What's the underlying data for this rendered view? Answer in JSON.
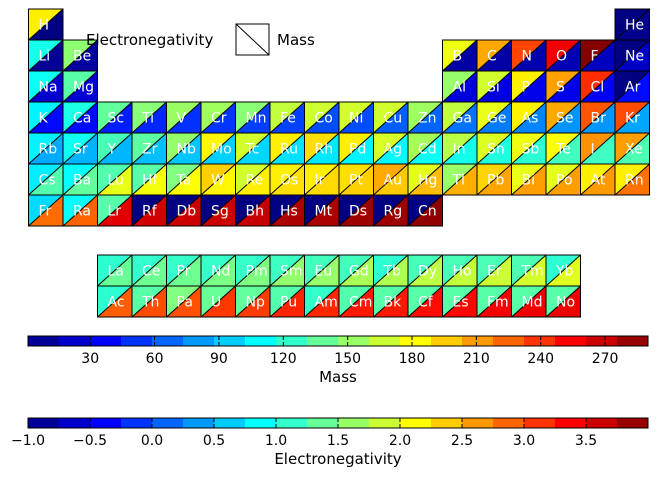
{
  "chart_data": {
    "type": "heatmap",
    "description_encoding": "Each cell is split diagonally: upper-left triangle colored by Electronegativity, lower-right triangle colored by Mass (jet colormap).",
    "legend": {
      "upper_left_label": "Electronegativity",
      "lower_right_label": "Mass"
    },
    "colorbars": [
      {
        "label": "Mass",
        "range": [
          1,
          290
        ],
        "ticks": [
          "30",
          "60",
          "90",
          "120",
          "150",
          "180",
          "210",
          "240",
          "270"
        ],
        "tick_values": [
          30,
          60,
          90,
          120,
          150,
          180,
          210,
          240,
          270
        ]
      },
      {
        "label": "Electronegativity",
        "range": [
          -1.0,
          4.0
        ],
        "ticks": [
          "−1.0",
          "−0.5",
          "0.0",
          "0.5",
          "1.0",
          "1.5",
          "2.0",
          "2.5",
          "3.0",
          "3.5"
        ],
        "tick_values": [
          -1.0,
          -0.5,
          0.0,
          0.5,
          1.0,
          1.5,
          2.0,
          2.5,
          3.0,
          3.5
        ]
      }
    ],
    "elements": [
      {
        "symbol": "H",
        "period": 1,
        "group": 1,
        "electronegativity": 2.2,
        "mass": 1.008
      },
      {
        "symbol": "He",
        "period": 1,
        "group": 18,
        "electronegativity": -1.0,
        "mass": 4.003
      },
      {
        "symbol": "Li",
        "period": 2,
        "group": 1,
        "electronegativity": 0.98,
        "mass": 6.94
      },
      {
        "symbol": "Be",
        "period": 2,
        "group": 2,
        "electronegativity": 1.57,
        "mass": 9.012
      },
      {
        "symbol": "B",
        "period": 2,
        "group": 13,
        "electronegativity": 2.04,
        "mass": 10.81
      },
      {
        "symbol": "C",
        "period": 2,
        "group": 14,
        "electronegativity": 2.55,
        "mass": 12.01
      },
      {
        "symbol": "N",
        "period": 2,
        "group": 15,
        "electronegativity": 3.04,
        "mass": 14.01
      },
      {
        "symbol": "O",
        "period": 2,
        "group": 16,
        "electronegativity": 3.44,
        "mass": 16.0
      },
      {
        "symbol": "F",
        "period": 2,
        "group": 17,
        "electronegativity": 3.98,
        "mass": 19.0
      },
      {
        "symbol": "Ne",
        "period": 2,
        "group": 18,
        "electronegativity": -1.0,
        "mass": 20.18
      },
      {
        "symbol": "Na",
        "period": 3,
        "group": 1,
        "electronegativity": 0.93,
        "mass": 22.99
      },
      {
        "symbol": "Mg",
        "period": 3,
        "group": 2,
        "electronegativity": 1.31,
        "mass": 24.31
      },
      {
        "symbol": "Al",
        "period": 3,
        "group": 13,
        "electronegativity": 1.61,
        "mass": 26.98
      },
      {
        "symbol": "Si",
        "period": 3,
        "group": 14,
        "electronegativity": 1.9,
        "mass": 28.09
      },
      {
        "symbol": "P",
        "period": 3,
        "group": 15,
        "electronegativity": 2.19,
        "mass": 30.97
      },
      {
        "symbol": "S",
        "period": 3,
        "group": 16,
        "electronegativity": 2.58,
        "mass": 32.06
      },
      {
        "symbol": "Cl",
        "period": 3,
        "group": 17,
        "electronegativity": 3.16,
        "mass": 35.45
      },
      {
        "symbol": "Ar",
        "period": 3,
        "group": 18,
        "electronegativity": -1.0,
        "mass": 39.95
      },
      {
        "symbol": "K",
        "period": 4,
        "group": 1,
        "electronegativity": 0.82,
        "mass": 39.1
      },
      {
        "symbol": "Ca",
        "period": 4,
        "group": 2,
        "electronegativity": 1.0,
        "mass": 40.08
      },
      {
        "symbol": "Sc",
        "period": 4,
        "group": 3,
        "electronegativity": 1.36,
        "mass": 44.96
      },
      {
        "symbol": "Ti",
        "period": 4,
        "group": 4,
        "electronegativity": 1.54,
        "mass": 47.87
      },
      {
        "symbol": "V",
        "period": 4,
        "group": 5,
        "electronegativity": 1.63,
        "mass": 50.94
      },
      {
        "symbol": "Cr",
        "period": 4,
        "group": 6,
        "electronegativity": 1.66,
        "mass": 52.0
      },
      {
        "symbol": "Mn",
        "period": 4,
        "group": 7,
        "electronegativity": 1.55,
        "mass": 54.94
      },
      {
        "symbol": "Fe",
        "period": 4,
        "group": 8,
        "electronegativity": 1.83,
        "mass": 55.85
      },
      {
        "symbol": "Co",
        "period": 4,
        "group": 9,
        "electronegativity": 1.88,
        "mass": 58.93
      },
      {
        "symbol": "Ni",
        "period": 4,
        "group": 10,
        "electronegativity": 1.91,
        "mass": 58.69
      },
      {
        "symbol": "Cu",
        "period": 4,
        "group": 11,
        "electronegativity": 1.9,
        "mass": 63.55
      },
      {
        "symbol": "Zn",
        "period": 4,
        "group": 12,
        "electronegativity": 1.65,
        "mass": 65.38
      },
      {
        "symbol": "Ga",
        "period": 4,
        "group": 13,
        "electronegativity": 1.81,
        "mass": 69.72
      },
      {
        "symbol": "Ge",
        "period": 4,
        "group": 14,
        "electronegativity": 2.01,
        "mass": 72.63
      },
      {
        "symbol": "As",
        "period": 4,
        "group": 15,
        "electronegativity": 2.18,
        "mass": 74.92
      },
      {
        "symbol": "Se",
        "period": 4,
        "group": 16,
        "electronegativity": 2.55,
        "mass": 78.97
      },
      {
        "symbol": "Br",
        "period": 4,
        "group": 17,
        "electronegativity": 2.96,
        "mass": 79.9
      },
      {
        "symbol": "Kr",
        "period": 4,
        "group": 18,
        "electronegativity": 3.0,
        "mass": 83.8
      },
      {
        "symbol": "Rb",
        "period": 5,
        "group": 1,
        "electronegativity": 0.82,
        "mass": 85.47
      },
      {
        "symbol": "Sr",
        "period": 5,
        "group": 2,
        "electronegativity": 0.95,
        "mass": 87.62
      },
      {
        "symbol": "Y",
        "period": 5,
        "group": 3,
        "electronegativity": 1.22,
        "mass": 88.91
      },
      {
        "symbol": "Zr",
        "period": 5,
        "group": 4,
        "electronegativity": 1.33,
        "mass": 91.22
      },
      {
        "symbol": "Nb",
        "period": 5,
        "group": 5,
        "electronegativity": 1.6,
        "mass": 92.91
      },
      {
        "symbol": "Mo",
        "period": 5,
        "group": 6,
        "electronegativity": 2.16,
        "mass": 95.95
      },
      {
        "symbol": "Tc",
        "period": 5,
        "group": 7,
        "electronegativity": 1.9,
        "mass": 98.0
      },
      {
        "symbol": "Ru",
        "period": 5,
        "group": 8,
        "electronegativity": 2.2,
        "mass": 101.07
      },
      {
        "symbol": "Rh",
        "period": 5,
        "group": 9,
        "electronegativity": 2.28,
        "mass": 102.91
      },
      {
        "symbol": "Pd",
        "period": 5,
        "group": 10,
        "electronegativity": 2.2,
        "mass": 106.42
      },
      {
        "symbol": "Ag",
        "period": 5,
        "group": 11,
        "electronegativity": 1.93,
        "mass": 107.87
      },
      {
        "symbol": "Cd",
        "period": 5,
        "group": 12,
        "electronegativity": 1.69,
        "mass": 112.41
      },
      {
        "symbol": "In",
        "period": 5,
        "group": 13,
        "electronegativity": 1.78,
        "mass": 114.82
      },
      {
        "symbol": "Sn",
        "period": 5,
        "group": 14,
        "electronegativity": 1.96,
        "mass": 118.71
      },
      {
        "symbol": "Sb",
        "period": 5,
        "group": 15,
        "electronegativity": 2.05,
        "mass": 121.76
      },
      {
        "symbol": "Te",
        "period": 5,
        "group": 16,
        "electronegativity": 2.1,
        "mass": 127.6
      },
      {
        "symbol": "I",
        "period": 5,
        "group": 17,
        "electronegativity": 2.66,
        "mass": 126.9
      },
      {
        "symbol": "Xe",
        "period": 5,
        "group": 18,
        "electronegativity": 2.6,
        "mass": 131.29
      },
      {
        "symbol": "Cs",
        "period": 6,
        "group": 1,
        "electronegativity": 0.79,
        "mass": 132.91
      },
      {
        "symbol": "Ba",
        "period": 6,
        "group": 2,
        "electronegativity": 0.89,
        "mass": 137.33
      },
      {
        "symbol": "Lu",
        "period": 6,
        "group": 3,
        "electronegativity": 1.27,
        "mass": 174.97
      },
      {
        "symbol": "Hf",
        "period": 6,
        "group": 4,
        "electronegativity": 1.3,
        "mass": 178.49
      },
      {
        "symbol": "Ta",
        "period": 6,
        "group": 5,
        "electronegativity": 1.5,
        "mass": 180.95
      },
      {
        "symbol": "W",
        "period": 6,
        "group": 6,
        "electronegativity": 2.36,
        "mass": 183.84
      },
      {
        "symbol": "Re",
        "period": 6,
        "group": 7,
        "electronegativity": 1.9,
        "mass": 186.21
      },
      {
        "symbol": "Os",
        "period": 6,
        "group": 8,
        "electronegativity": 2.2,
        "mass": 190.23
      },
      {
        "symbol": "Ir",
        "period": 6,
        "group": 9,
        "electronegativity": 2.2,
        "mass": 192.22
      },
      {
        "symbol": "Pt",
        "period": 6,
        "group": 10,
        "electronegativity": 2.28,
        "mass": 195.08
      },
      {
        "symbol": "Au",
        "period": 6,
        "group": 11,
        "electronegativity": 2.54,
        "mass": 196.97
      },
      {
        "symbol": "Hg",
        "period": 6,
        "group": 12,
        "electronegativity": 2.0,
        "mass": 200.59
      },
      {
        "symbol": "Tl",
        "period": 6,
        "group": 13,
        "electronegativity": 1.62,
        "mass": 204.38
      },
      {
        "symbol": "Pb",
        "period": 6,
        "group": 14,
        "electronegativity": 2.33,
        "mass": 207.2
      },
      {
        "symbol": "Bi",
        "period": 6,
        "group": 15,
        "electronegativity": 2.02,
        "mass": 208.98
      },
      {
        "symbol": "Po",
        "period": 6,
        "group": 16,
        "electronegativity": 2.0,
        "mass": 209.0
      },
      {
        "symbol": "At",
        "period": 6,
        "group": 17,
        "electronegativity": 2.2,
        "mass": 210.0
      },
      {
        "symbol": "Rn",
        "period": 6,
        "group": 18,
        "electronegativity": 2.2,
        "mass": 222.0
      },
      {
        "symbol": "Fr",
        "period": 7,
        "group": 1,
        "electronegativity": 0.7,
        "mass": 223.0
      },
      {
        "symbol": "Ra",
        "period": 7,
        "group": 2,
        "electronegativity": 0.9,
        "mass": 226.0
      },
      {
        "symbol": "Lr",
        "period": 7,
        "group": 3,
        "electronegativity": 1.3,
        "mass": 262.0
      },
      {
        "symbol": "Rf",
        "period": 7,
        "group": 4,
        "electronegativity": -1.0,
        "mass": 267.0
      },
      {
        "symbol": "Db",
        "period": 7,
        "group": 5,
        "electronegativity": -1.0,
        "mass": 268.0
      },
      {
        "symbol": "Sg",
        "period": 7,
        "group": 6,
        "electronegativity": -1.0,
        "mass": 269.0
      },
      {
        "symbol": "Bh",
        "period": 7,
        "group": 7,
        "electronegativity": -1.0,
        "mass": 270.0
      },
      {
        "symbol": "Hs",
        "period": 7,
        "group": 8,
        "electronegativity": -1.0,
        "mass": 277.0
      },
      {
        "symbol": "Mt",
        "period": 7,
        "group": 9,
        "electronegativity": -1.0,
        "mass": 278.0
      },
      {
        "symbol": "Ds",
        "period": 7,
        "group": 10,
        "electronegativity": -1.0,
        "mass": 281.0
      },
      {
        "symbol": "Rg",
        "period": 7,
        "group": 11,
        "electronegativity": -1.0,
        "mass": 282.0
      },
      {
        "symbol": "Cn",
        "period": 7,
        "group": 12,
        "electronegativity": -1.0,
        "mass": 285.0
      },
      {
        "symbol": "La",
        "period": "lanthanide",
        "group": 3,
        "electronegativity": 1.1,
        "mass": 138.91
      },
      {
        "symbol": "Ce",
        "period": "lanthanide",
        "group": 4,
        "electronegativity": 1.12,
        "mass": 140.12
      },
      {
        "symbol": "Pr",
        "period": "lanthanide",
        "group": 5,
        "electronegativity": 1.13,
        "mass": 140.91
      },
      {
        "symbol": "Nd",
        "period": "lanthanide",
        "group": 6,
        "electronegativity": 1.14,
        "mass": 144.24
      },
      {
        "symbol": "Pm",
        "period": "lanthanide",
        "group": 7,
        "electronegativity": 1.13,
        "mass": 145.0
      },
      {
        "symbol": "Sm",
        "period": "lanthanide",
        "group": 8,
        "electronegativity": 1.17,
        "mass": 150.36
      },
      {
        "symbol": "Eu",
        "period": "lanthanide",
        "group": 9,
        "electronegativity": 1.2,
        "mass": 151.96
      },
      {
        "symbol": "Gd",
        "period": "lanthanide",
        "group": 10,
        "electronegativity": 1.2,
        "mass": 157.25
      },
      {
        "symbol": "Tb",
        "period": "lanthanide",
        "group": 11,
        "electronegativity": 1.1,
        "mass": 158.93
      },
      {
        "symbol": "Dy",
        "period": "lanthanide",
        "group": 12,
        "electronegativity": 1.22,
        "mass": 162.5
      },
      {
        "symbol": "Ho",
        "period": "lanthanide",
        "group": 13,
        "electronegativity": 1.23,
        "mass": 164.93
      },
      {
        "symbol": "Er",
        "period": "lanthanide",
        "group": 14,
        "electronegativity": 1.24,
        "mass": 167.26
      },
      {
        "symbol": "Tm",
        "period": "lanthanide",
        "group": 15,
        "electronegativity": 1.25,
        "mass": 168.93
      },
      {
        "symbol": "Yb",
        "period": "lanthanide",
        "group": 16,
        "electronegativity": 1.1,
        "mass": 173.05
      },
      {
        "symbol": "Ac",
        "period": "actinide",
        "group": 3,
        "electronegativity": 1.1,
        "mass": 227.0
      },
      {
        "symbol": "Th",
        "period": "actinide",
        "group": 4,
        "electronegativity": 1.3,
        "mass": 232.04
      },
      {
        "symbol": "Pa",
        "period": "actinide",
        "group": 5,
        "electronegativity": 1.5,
        "mass": 231.04
      },
      {
        "symbol": "U",
        "period": "actinide",
        "group": 6,
        "electronegativity": 1.38,
        "mass": 238.03
      },
      {
        "symbol": "Np",
        "period": "actinide",
        "group": 7,
        "electronegativity": 1.36,
        "mass": 237.0
      },
      {
        "symbol": "Pu",
        "period": "actinide",
        "group": 8,
        "electronegativity": 1.28,
        "mass": 244.0
      },
      {
        "symbol": "Am",
        "period": "actinide",
        "group": 9,
        "electronegativity": 1.13,
        "mass": 243.0
      },
      {
        "symbol": "Cm",
        "period": "actinide",
        "group": 10,
        "electronegativity": 1.28,
        "mass": 247.0
      },
      {
        "symbol": "Bk",
        "period": "actinide",
        "group": 11,
        "electronegativity": 1.3,
        "mass": 247.0
      },
      {
        "symbol": "Cf",
        "period": "actinide",
        "group": 12,
        "electronegativity": 1.3,
        "mass": 251.0
      },
      {
        "symbol": "Es",
        "period": "actinide",
        "group": 13,
        "electronegativity": 1.3,
        "mass": 252.0
      },
      {
        "symbol": "Fm",
        "period": "actinide",
        "group": 14,
        "electronegativity": 1.3,
        "mass": 257.0
      },
      {
        "symbol": "Md",
        "period": "actinide",
        "group": 15,
        "electronegativity": 1.3,
        "mass": 258.0
      },
      {
        "symbol": "No",
        "period": "actinide",
        "group": 16,
        "electronegativity": 1.3,
        "mass": 259.0
      }
    ]
  }
}
